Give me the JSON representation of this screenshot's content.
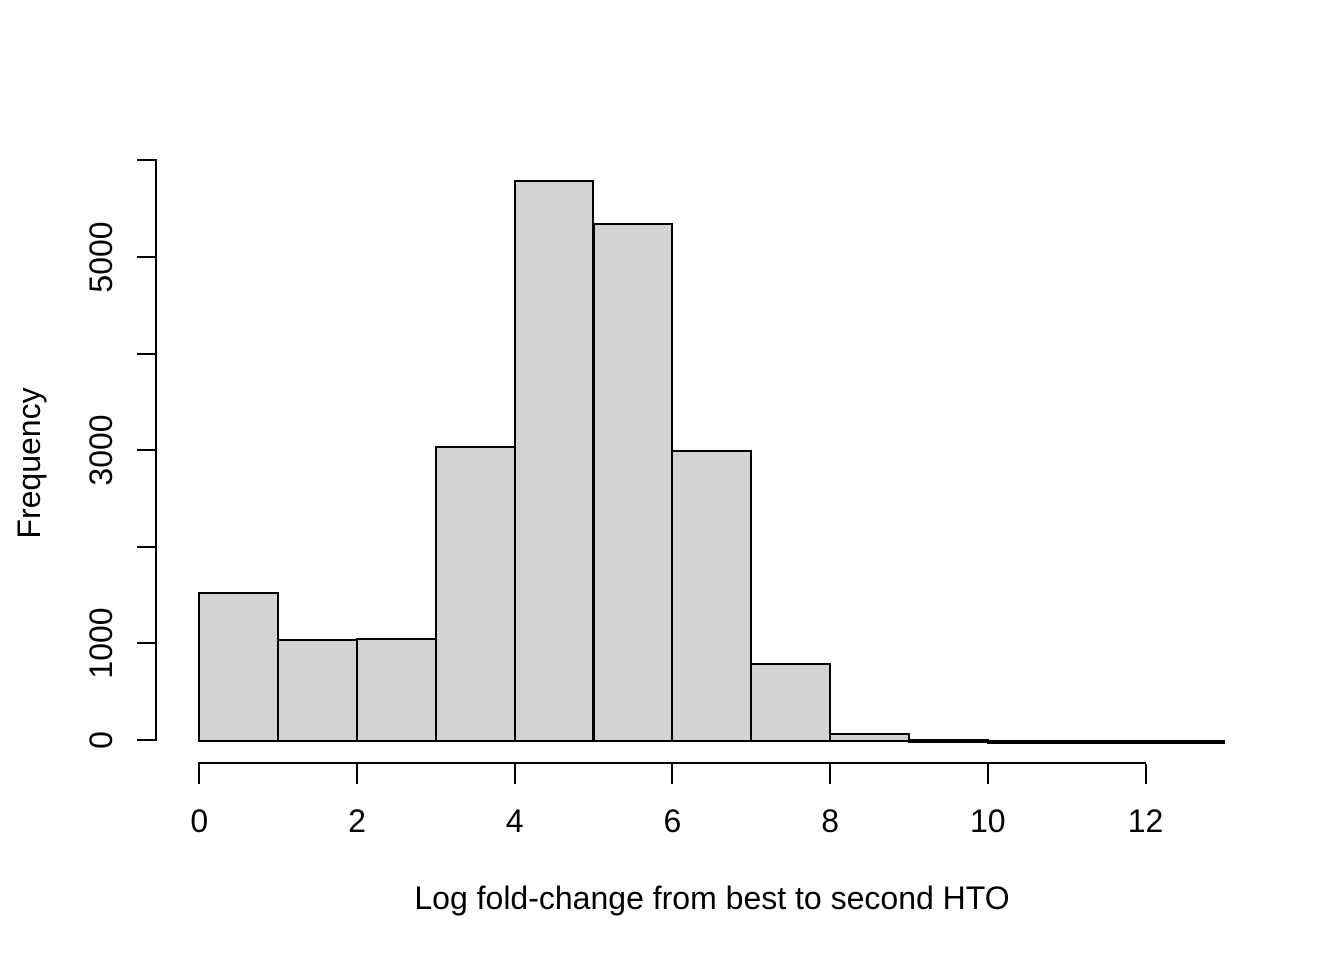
{
  "chart_data": {
    "type": "bar",
    "subtype": "histogram",
    "title": "",
    "xlabel": "Log fold-change from best to second HTO",
    "ylabel": "Frequency",
    "bin_edges": [
      0,
      1,
      2,
      3,
      4,
      5,
      6,
      7,
      8,
      9,
      10,
      11,
      12,
      13
    ],
    "bin_width": 1,
    "counts": [
      1530,
      1050,
      1060,
      3045,
      5800,
      5355,
      3000,
      795,
      75,
      15,
      5,
      2,
      1
    ],
    "x_tick_values": [
      0,
      2,
      4,
      6,
      8,
      10,
      12
    ],
    "x_tick_labels": [
      "0",
      "2",
      "4",
      "6",
      "8",
      "10",
      "12"
    ],
    "y_tick_values": [
      0,
      1000,
      2000,
      3000,
      4000,
      5000,
      6000
    ],
    "y_tick_labels": [
      "0",
      "1000",
      "",
      "3000",
      "",
      "5000",
      ""
    ],
    "xlim": [
      0,
      13
    ],
    "ylim": [
      0,
      6000
    ],
    "grid": false,
    "legend": "none",
    "colors": {
      "bar_fill": "#d3d3d3",
      "bar_border": "#000000",
      "axis": "#000000",
      "text": "#000000",
      "background": "#ffffff"
    }
  }
}
